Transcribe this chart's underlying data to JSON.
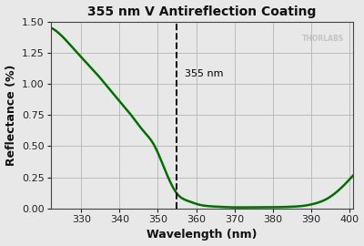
{
  "title": "355 nm V Antireflection Coating",
  "xlabel": "Wavelength (nm)",
  "ylabel": "Reflectance (%)",
  "xmin": 322,
  "xmax": 401,
  "ymin": 0.0,
  "ymax": 1.5,
  "yticks": [
    0.0,
    0.25,
    0.5,
    0.75,
    1.0,
    1.25,
    1.5
  ],
  "xticks": [
    330,
    340,
    350,
    360,
    370,
    380,
    390,
    400
  ],
  "line_color": "#007000",
  "line_width": 1.8,
  "vline_x": 355,
  "vline_label": "355 nm",
  "vline_color": "#000000",
  "grid_color": "#bbbbbb",
  "bg_color": "#e8e8e8",
  "watermark": "THORLABS",
  "watermark_color": "#bbbbbb",
  "curve_points_x": [
    322,
    325,
    328,
    331,
    334,
    337,
    340,
    343,
    346,
    349,
    352,
    355,
    358,
    361,
    364,
    367,
    370,
    373,
    376,
    379,
    382,
    385,
    388,
    391,
    394,
    397,
    400
  ],
  "curve_points_y": [
    1.45,
    1.38,
    1.28,
    1.18,
    1.08,
    0.97,
    0.86,
    0.75,
    0.63,
    0.51,
    0.3,
    0.12,
    0.06,
    0.03,
    0.018,
    0.013,
    0.01,
    0.01,
    0.01,
    0.011,
    0.012,
    0.015,
    0.022,
    0.04,
    0.075,
    0.14,
    0.23
  ]
}
